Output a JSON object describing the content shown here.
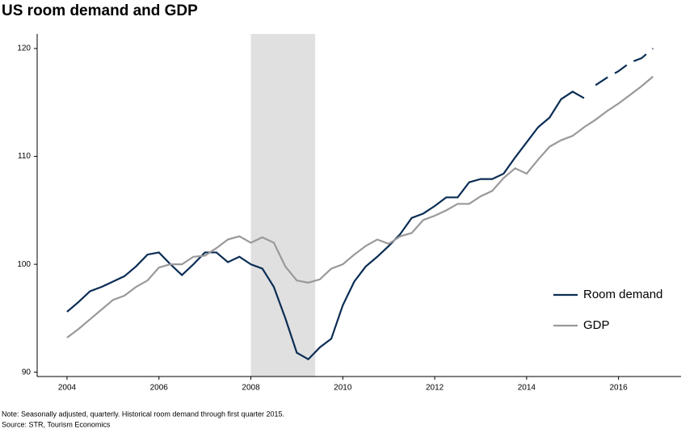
{
  "chart_data": {
    "type": "line",
    "title": "US room demand and GDP",
    "notes": [
      "Note: Seasonally adjusted, quarterly. Historical room demand through first quarter 2015.",
      "Source: STR, Tourism Economics"
    ],
    "x": [
      2004.0,
      2004.25,
      2004.5,
      2004.75,
      2005.0,
      2005.25,
      2005.5,
      2005.75,
      2006.0,
      2006.25,
      2006.5,
      2006.75,
      2007.0,
      2007.25,
      2007.5,
      2007.75,
      2008.0,
      2008.25,
      2008.5,
      2008.75,
      2009.0,
      2009.25,
      2009.5,
      2009.75,
      2010.0,
      2010.25,
      2010.5,
      2010.75,
      2011.0,
      2011.25,
      2011.5,
      2011.75,
      2012.0,
      2012.25,
      2012.5,
      2012.75,
      2013.0,
      2013.25,
      2013.5,
      2013.75,
      2014.0,
      2014.25,
      2014.5,
      2014.75,
      2015.0,
      2015.25,
      2015.5,
      2015.75,
      2016.0,
      2016.25,
      2016.5,
      2016.75
    ],
    "series": [
      {
        "name": "Room demand",
        "color": "#0b2d55",
        "dashed_from": 2015.5,
        "values": [
          95.6,
          96.5,
          97.5,
          97.9,
          98.4,
          98.9,
          99.8,
          100.9,
          101.1,
          100.0,
          99.0,
          100.0,
          101.1,
          101.1,
          100.2,
          100.7,
          100.0,
          99.6,
          97.9,
          95.0,
          91.8,
          91.2,
          92.3,
          93.1,
          96.2,
          98.4,
          99.8,
          100.7,
          101.7,
          102.8,
          104.3,
          104.7,
          105.4,
          106.2,
          106.2,
          107.6,
          107.9,
          107.9,
          108.4,
          109.9,
          111.3,
          112.7,
          113.6,
          115.3,
          116.0,
          115.4,
          116.6,
          117.3,
          117.9,
          118.7,
          119.1,
          120.0
        ]
      },
      {
        "name": "GDP",
        "color": "#999999",
        "values": [
          93.2,
          94.0,
          94.9,
          95.8,
          96.7,
          97.1,
          97.9,
          98.5,
          99.7,
          100.0,
          100.0,
          100.7,
          100.8,
          101.5,
          102.3,
          102.6,
          102.0,
          102.5,
          102.0,
          99.8,
          98.5,
          98.3,
          98.6,
          99.6,
          100.0,
          100.9,
          101.7,
          102.3,
          101.9,
          102.6,
          102.9,
          104.1,
          104.5,
          105.0,
          105.6,
          105.6,
          106.3,
          106.8,
          108.0,
          108.9,
          108.4,
          109.7,
          110.9,
          111.5,
          111.9,
          112.7,
          113.4,
          114.2,
          114.9,
          115.7,
          116.5,
          117.4
        ]
      }
    ],
    "shaded_x": [
      2008,
      2009.4
    ],
    "shade_color": "#e0e0e0",
    "xlim": [
      2003.35,
      2017.36
    ],
    "xticks": [
      2004,
      2006,
      2008,
      2010,
      2012,
      2014,
      2016
    ],
    "ylim": [
      89.6,
      121.35
    ],
    "yticks": [
      90,
      100,
      110,
      120
    ],
    "legend": "lower right",
    "grid": false
  }
}
